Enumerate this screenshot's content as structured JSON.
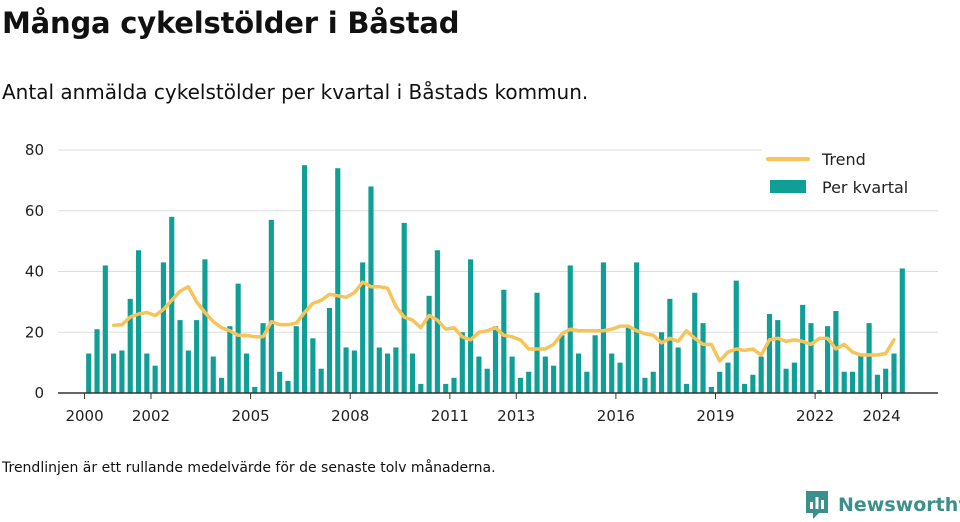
{
  "title": "Många cykelstölder i Båstad",
  "subtitle": "Antal anmälda cykelstölder per kvartal i Båstads kommun.",
  "footnote": "Trendlinjen är ett rullande medelvärde för de senaste tolv månaderna.",
  "brand": {
    "name": "Newsworthy",
    "color": "#3d8f8b",
    "logo_icon": "bar-chart-speech-icon"
  },
  "chart_data": {
    "type": "bar",
    "title": "Många cykelstölder i Båstad",
    "subtitle": "Antal anmälda cykelstölder per kvartal i Båstads kommun.",
    "xlabel": "",
    "ylabel": "",
    "ylim": [
      0,
      80
    ],
    "yticks": [
      0,
      20,
      40,
      60,
      80
    ],
    "xlim": [
      1999.2,
      2025.7
    ],
    "xticks": [
      2000,
      2002,
      2005,
      2008,
      2011,
      2013,
      2016,
      2019,
      2022,
      2024
    ],
    "xtick_labels": [
      "2000",
      "2002",
      "2005",
      "2008",
      "2011",
      "2013",
      "2016",
      "2019",
      "2022",
      "2024"
    ],
    "grid": "horizontal",
    "legend_position": "top-right",
    "colors": {
      "bars": "#109f97",
      "trend": "#f7c45a",
      "grid": "#dddddd",
      "axis": "#333333"
    },
    "series": [
      {
        "name": "Per kvartal",
        "kind": "bar",
        "x": [
          "2000-Q1",
          "2000-Q2",
          "2000-Q3",
          "2000-Q4",
          "2001-Q1",
          "2001-Q2",
          "2001-Q3",
          "2001-Q4",
          "2002-Q1",
          "2002-Q2",
          "2002-Q3",
          "2002-Q4",
          "2003-Q1",
          "2003-Q2",
          "2003-Q3",
          "2003-Q4",
          "2004-Q1",
          "2004-Q2",
          "2004-Q3",
          "2004-Q4",
          "2005-Q1",
          "2005-Q2",
          "2005-Q3",
          "2005-Q4",
          "2006-Q1",
          "2006-Q2",
          "2006-Q3",
          "2006-Q4",
          "2007-Q1",
          "2007-Q2",
          "2007-Q3",
          "2007-Q4",
          "2008-Q1",
          "2008-Q2",
          "2008-Q3",
          "2008-Q4",
          "2009-Q1",
          "2009-Q2",
          "2009-Q3",
          "2009-Q4",
          "2010-Q1",
          "2010-Q2",
          "2010-Q3",
          "2010-Q4",
          "2011-Q1",
          "2011-Q2",
          "2011-Q3",
          "2011-Q4",
          "2012-Q1",
          "2012-Q2",
          "2012-Q3",
          "2012-Q4",
          "2013-Q1",
          "2013-Q2",
          "2013-Q3",
          "2013-Q4",
          "2014-Q1",
          "2014-Q2",
          "2014-Q3",
          "2014-Q4",
          "2015-Q1",
          "2015-Q2",
          "2015-Q3",
          "2015-Q4",
          "2016-Q1",
          "2016-Q2",
          "2016-Q3",
          "2016-Q4",
          "2017-Q1",
          "2017-Q2",
          "2017-Q3",
          "2017-Q4",
          "2018-Q1",
          "2018-Q2",
          "2018-Q3",
          "2018-Q4",
          "2019-Q1",
          "2019-Q2",
          "2019-Q3",
          "2019-Q4",
          "2020-Q1",
          "2020-Q2",
          "2020-Q3",
          "2020-Q4",
          "2021-Q1",
          "2021-Q2",
          "2021-Q3",
          "2021-Q4",
          "2022-Q1",
          "2022-Q2",
          "2022-Q3",
          "2022-Q4",
          "2023-Q1",
          "2023-Q2",
          "2023-Q3",
          "2023-Q4",
          "2024-Q1",
          "2024-Q2",
          "2024-Q3",
          "2024-Q4"
        ],
        "values": [
          13,
          21,
          42,
          13,
          14,
          31,
          47,
          13,
          9,
          43,
          58,
          24,
          14,
          24,
          44,
          12,
          5,
          22,
          36,
          13,
          2,
          23,
          57,
          7,
          4,
          22,
          75,
          18,
          8,
          28,
          74,
          15,
          14,
          43,
          68,
          15,
          13,
          15,
          56,
          13,
          3,
          32,
          47,
          3,
          5,
          20,
          44,
          12,
          8,
          22,
          34,
          12,
          5,
          7,
          33,
          12,
          9,
          19,
          42,
          13,
          7,
          19,
          43,
          13,
          10,
          22,
          43,
          5,
          7,
          20,
          31,
          15,
          3,
          33,
          23,
          2,
          7,
          10,
          37,
          3,
          6,
          12,
          26,
          24,
          8,
          10,
          29,
          23,
          1,
          22,
          27,
          7,
          7,
          13,
          23,
          6,
          8,
          13,
          41,
          0
        ]
      },
      {
        "name": "Trend",
        "kind": "line",
        "start_index": 3,
        "values": [
          22.3,
          22.5,
          25,
          26,
          26.5,
          25.5,
          27.5,
          30.5,
          33.5,
          35,
          30,
          26.5,
          23.5,
          21.5,
          20.5,
          19,
          19,
          18.5,
          18.5,
          23.5,
          22.5,
          22.5,
          23,
          26.5,
          29.5,
          30.5,
          32.5,
          32,
          31.5,
          33,
          36.5,
          35,
          35,
          34.5,
          28.5,
          25,
          24,
          21.5,
          25.5,
          24,
          21,
          21.5,
          18.5,
          17.5,
          20,
          20.5,
          21.5,
          19,
          18.5,
          17.5,
          14.5,
          14.5,
          14.5,
          16,
          19.5,
          21,
          20.5,
          20.5,
          20.5,
          20.5,
          21,
          22,
          22,
          20.5,
          19.5,
          19,
          16.5,
          18,
          17,
          20.5,
          18,
          16,
          16,
          10.5,
          13.5,
          14.5,
          14,
          14.5,
          12.5,
          17.5,
          18,
          17,
          17.5,
          17,
          16,
          18,
          18,
          14.5,
          16,
          13.5,
          12.5,
          12.5,
          12.5,
          13,
          17.5
        ]
      }
    ]
  }
}
